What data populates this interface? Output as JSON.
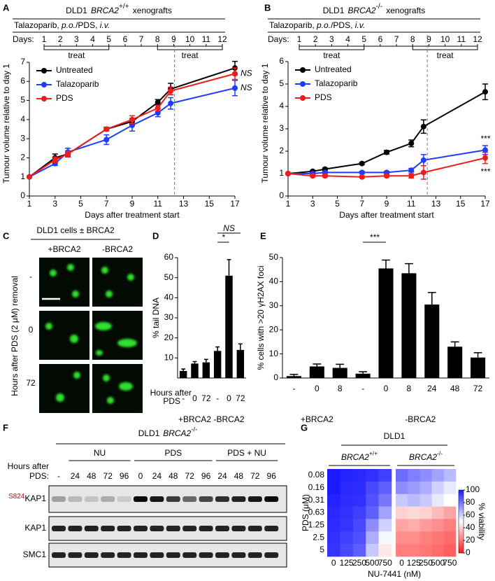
{
  "chart_data": [
    {
      "type": "line",
      "panel": "A",
      "title": {
        "prefix": "DLD1",
        "gene": "BRCA2",
        "genotype": "+/+",
        "suffix": "xenografts"
      },
      "schedule": {
        "drug_label": [
          "Talazoparib, ",
          "p.o.",
          "/PDS, ",
          "i.v."
        ],
        "days_label": "Days:",
        "days": [
          1,
          2,
          3,
          4,
          5,
          6,
          7,
          8,
          9,
          10,
          11,
          12
        ],
        "treat_label": "treat",
        "treat_periods": [
          [
            1,
            5
          ],
          [
            8,
            12
          ]
        ]
      },
      "x": [
        1,
        3,
        4,
        7,
        9,
        11,
        12,
        17
      ],
      "xlim": [
        1,
        17
      ],
      "xticks": [
        1,
        3,
        5,
        7,
        9,
        11,
        13,
        15,
        17
      ],
      "ylim": [
        0,
        7
      ],
      "yticks": [
        0,
        1,
        2,
        3,
        4,
        5,
        6,
        7
      ],
      "xlabel": "Days after treatment start",
      "ylabel": "Tumour volume relative to day 1",
      "legend": "upper left",
      "vline_x": 12.3,
      "series": [
        {
          "name": "Untreated",
          "color": "#000000",
          "values": [
            1,
            2.0,
            2.2,
            3.5,
            3.9,
            4.9,
            5.6,
            6.7
          ],
          "errors": [
            0,
            0.2,
            0.15,
            0.1,
            0.15,
            0.15,
            0.3,
            0.35
          ]
        },
        {
          "name": "Talazoparib",
          "color": "#1f3cff",
          "values": [
            1,
            1.7,
            2.3,
            2.95,
            3.7,
            4.35,
            4.85,
            5.65
          ],
          "errors": [
            0,
            0.1,
            0.2,
            0.25,
            0.3,
            0.2,
            0.3,
            0.4
          ],
          "annotation": "NS",
          "annotation_side": "right"
        },
        {
          "name": "PDS",
          "color": "#ee1c1c",
          "values": [
            1,
            1.9,
            2.2,
            3.5,
            4.0,
            4.6,
            5.5,
            6.4
          ],
          "errors": [
            0,
            0.15,
            0.15,
            0.1,
            0.2,
            0.15,
            0.2,
            0.3
          ],
          "annotation": "NS",
          "annotation_side": "right"
        }
      ]
    },
    {
      "type": "line",
      "panel": "B",
      "title": {
        "prefix": "DLD1",
        "gene": "BRCA2",
        "genotype": "-/-",
        "suffix": "xenografts"
      },
      "schedule": {
        "drug_label": [
          "Talazoparib, ",
          "p.o.",
          "/PDS, ",
          "i.v."
        ],
        "days_label": "Days:",
        "days": [
          1,
          2,
          3,
          4,
          5,
          6,
          7,
          8,
          9,
          10,
          11,
          12
        ],
        "treat_label": "treat",
        "treat_periods": [
          [
            1,
            5
          ],
          [
            8,
            12
          ]
        ]
      },
      "x": [
        1,
        3,
        4,
        7,
        9,
        11,
        12,
        17
      ],
      "xlim": [
        1,
        17
      ],
      "xticks": [
        1,
        3,
        5,
        7,
        9,
        11,
        13,
        15,
        17
      ],
      "ylim": [
        0,
        6
      ],
      "yticks": [
        0,
        1,
        2,
        3,
        4,
        5,
        6
      ],
      "xlabel": "Days after treatment start",
      "ylabel": "Tumour volume relative to day 1",
      "legend": "upper left",
      "vline_x": 12.3,
      "series": [
        {
          "name": "Untreated",
          "color": "#000000",
          "values": [
            1,
            1.1,
            1.2,
            1.45,
            1.95,
            2.35,
            3.1,
            4.65
          ],
          "errors": [
            0,
            0.05,
            0.05,
            0.05,
            0.08,
            0.15,
            0.3,
            0.35
          ]
        },
        {
          "name": "Talazoparib",
          "color": "#1f3cff",
          "values": [
            1,
            1.0,
            1.05,
            1.05,
            1.05,
            1.15,
            1.6,
            2.05
          ],
          "errors": [
            0,
            0.05,
            0.05,
            0.05,
            0.05,
            0.08,
            0.25,
            0.2
          ],
          "annotation": "***",
          "annotation_side": "above"
        },
        {
          "name": "PDS",
          "color": "#ee1c1c",
          "values": [
            1,
            0.9,
            0.9,
            0.85,
            0.9,
            0.9,
            1.05,
            1.7
          ],
          "errors": [
            0,
            0.05,
            0.05,
            0.05,
            0.05,
            0.1,
            0.3,
            0.25
          ],
          "annotation": "***",
          "annotation_side": "below"
        }
      ]
    },
    {
      "type": "bar",
      "panel": "D",
      "ylabel": "% tail DNA",
      "xlabel": [
        "Hours after",
        "PDS"
      ],
      "ylim": [
        0,
        60
      ],
      "yticks": [
        10,
        20,
        30,
        40,
        50,
        60
      ],
      "color": "#000000",
      "groups": [
        {
          "label": "+BRCA2",
          "categories": [
            "-",
            "0",
            "72"
          ],
          "values": [
            3.5,
            7.2,
            7.8
          ],
          "errors": [
            1,
            1,
            1.5
          ]
        },
        {
          "label": "-BRCA2",
          "categories": [
            "-",
            "0",
            "72"
          ],
          "values": [
            13.5,
            51,
            14
          ],
          "errors": [
            2,
            8,
            3
          ]
        }
      ],
      "significance": [
        {
          "label": "*",
          "between": [
            3,
            4
          ]
        },
        {
          "label": "NS",
          "between": [
            3,
            5
          ]
        }
      ]
    },
    {
      "type": "bar",
      "panel": "E",
      "ylabel": "% cells with >20 γH2AX foci",
      "ylim": [
        0,
        50
      ],
      "yticks": [
        0,
        10,
        20,
        30,
        40,
        50
      ],
      "color": "#000000",
      "groups": [
        {
          "label": "+BRCA2",
          "categories": [
            "-",
            "0",
            "8"
          ],
          "values": [
            0.8,
            4.8,
            4.2
          ],
          "errors": [
            0.7,
            1,
            1.5
          ]
        },
        {
          "label": "-BRCA2",
          "categories": [
            "-",
            "0",
            "8",
            "24",
            "48",
            "72"
          ],
          "values": [
            1.8,
            45.5,
            43.5,
            30.5,
            13,
            8.5
          ],
          "errors": [
            0.8,
            3.5,
            4,
            5,
            2,
            2
          ]
        }
      ],
      "significance": [
        {
          "label": "***",
          "between": [
            3,
            4
          ]
        }
      ]
    },
    {
      "type": "heatmap",
      "title": {
        "gene": "BRCA2",
        "genotype": "+/+"
      },
      "x": [
        0,
        125,
        250,
        500,
        750
      ],
      "y": [
        0.08,
        0.16,
        0.31,
        0.63,
        1.25,
        2.5,
        5
      ],
      "ylabel": "PDS (μM)",
      "clim": [
        0,
        100
      ],
      "colors": [
        "#ff1a1a",
        "#ffffff",
        "#1a1aff"
      ],
      "values": [
        [
          100,
          98,
          97,
          95,
          92
        ],
        [
          100,
          97,
          96,
          90,
          85
        ],
        [
          98,
          96,
          95,
          88,
          80
        ],
        [
          97,
          95,
          92,
          85,
          70
        ],
        [
          96,
          94,
          90,
          75,
          60
        ],
        [
          95,
          92,
          88,
          68,
          52
        ],
        [
          94,
          90,
          85,
          62,
          45
        ]
      ]
    },
    {
      "type": "heatmap",
      "title": {
        "gene": "BRCA2",
        "genotype": "-/-"
      },
      "x": [
        0,
        125,
        250,
        500,
        750
      ],
      "clim": [
        0,
        100
      ],
      "colors": [
        "#ff1a1a",
        "#ffffff",
        "#1a1aff"
      ],
      "colorbar_ticks": [
        0,
        20,
        40,
        60,
        80,
        100
      ],
      "colorbar_label": "% viability",
      "values": [
        [
          82,
          78,
          75,
          70,
          65
        ],
        [
          75,
          72,
          68,
          60,
          55
        ],
        [
          62,
          65,
          62,
          55,
          50
        ],
        [
          40,
          42,
          40,
          35,
          30
        ],
        [
          30,
          32,
          28,
          25,
          22
        ],
        [
          25,
          25,
          22,
          20,
          18
        ],
        [
          22,
          22,
          20,
          18,
          15
        ]
      ]
    }
  ],
  "panel_c": {
    "panel": "C",
    "title": "DLD1 cells ± BRCA2",
    "columns": [
      "+BRCA2",
      "-BRCA2"
    ],
    "rows": [
      "-",
      "0",
      "72"
    ],
    "ylabel": "Hours after PDS (2 μM) removal"
  },
  "panel_f": {
    "panel": "F",
    "title": {
      "prefix": "DLD1",
      "gene": "BRCA2",
      "genotype": "-/-"
    },
    "hours_label": [
      "Hours after",
      "PDS:"
    ],
    "control_lane": "-",
    "groups": [
      {
        "label": "NU",
        "lanes": [
          24,
          48,
          72,
          96
        ]
      },
      {
        "label": "PDS",
        "lanes": [
          0,
          24,
          48,
          72,
          96
        ]
      },
      {
        "label": "PDS + NU",
        "lanes": [
          24,
          48,
          72,
          96
        ]
      }
    ],
    "rows": [
      {
        "phospho": "S824",
        "label": "KAP1"
      },
      {
        "label": "KAP1"
      },
      {
        "label": "SMC1"
      }
    ]
  },
  "panel_g": {
    "panel": "G",
    "cell_line": "DLD1",
    "xlabel": "NU-7441 (nM)"
  }
}
